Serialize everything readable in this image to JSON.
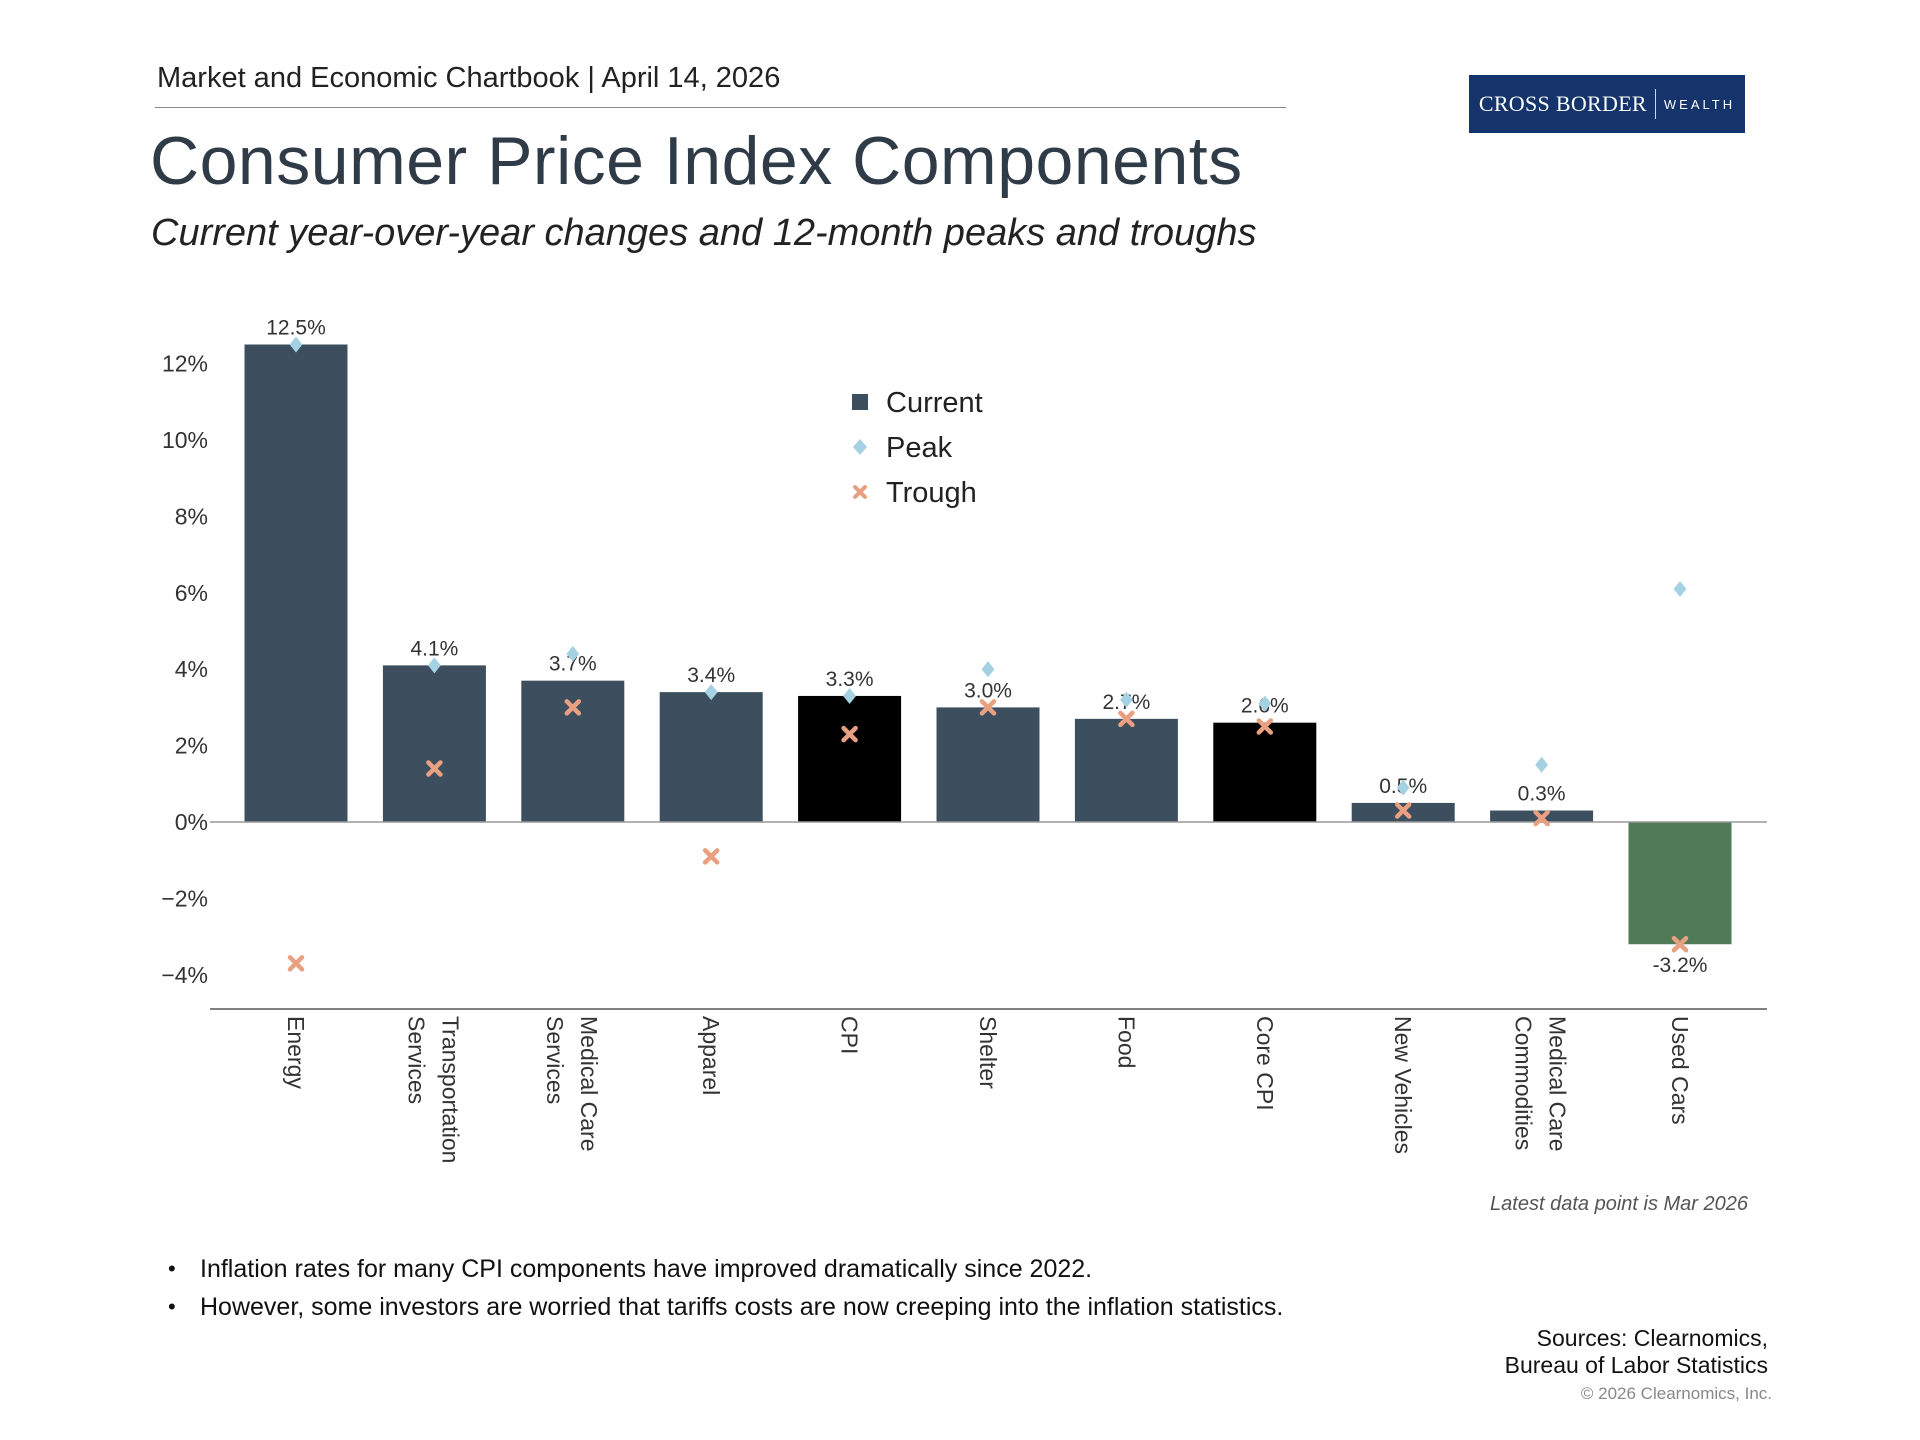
{
  "header": {
    "text": "Market and Economic Chartbook | April 14, 2026"
  },
  "title": "Consumer Price Index Components",
  "subtitle": "Current year-over-year changes and 12-month peaks and troughs",
  "logo": {
    "text_main": "CROSS BORDER",
    "text_sub": "WEALTH",
    "color": "#14346b"
  },
  "note": "Latest data point is Mar 2026",
  "bullets": [
    "Inflation rates for many CPI components have improved dramatically since 2022.",
    "However, some investors are worried that tariffs costs are now creeping into the inflation statistics."
  ],
  "sources": {
    "line1": "Sources: Clearnomics,",
    "line2": "Bureau of Labor Statistics"
  },
  "copyright": "© 2026 Clearnomics, Inc.",
  "chart_data": {
    "type": "bar",
    "categories": [
      "Energy",
      "Transportation\nServices",
      "Medical Care\nServices",
      "Apparel",
      "CPI",
      "Shelter",
      "Food",
      "Core CPI",
      "New Vehicles",
      "Medical Care\nCommodities",
      "Used Cars"
    ],
    "series": [
      {
        "name": "Current",
        "values": [
          12.5,
          4.1,
          3.7,
          3.4,
          3.3,
          3.0,
          2.7,
          2.6,
          0.5,
          0.3,
          -3.2
        ]
      },
      {
        "name": "Peak",
        "values": [
          12.5,
          4.1,
          4.4,
          3.4,
          3.3,
          4.0,
          3.2,
          3.1,
          0.9,
          1.5,
          6.1
        ]
      },
      {
        "name": "Trough",
        "values": [
          -3.7,
          1.4,
          3.0,
          -0.9,
          2.3,
          3.0,
          2.7,
          2.5,
          0.3,
          0.1,
          -3.2
        ]
      }
    ],
    "data_labels": [
      "12.5%",
      "4.1%",
      "3.7%",
      "3.4%",
      "3.3%",
      "3.0%",
      "2.7%",
      "2.6%",
      "0.5%",
      "0.3%",
      "-3.2%"
    ],
    "ylim": [
      -4.8,
      13
    ],
    "yticks": [
      -4,
      -2,
      0,
      2,
      4,
      6,
      8,
      10,
      12
    ],
    "ytick_labels": [
      "−4%",
      "−2%",
      "0%",
      "2%",
      "4%",
      "6%",
      "8%",
      "10%",
      "12%"
    ],
    "legend": {
      "position": "top-center",
      "entries": [
        "Current",
        "Peak",
        "Trough"
      ]
    },
    "grid": false,
    "colors": {
      "current": "#3d4f5f",
      "highlight": "#000000",
      "negative": "#517a57",
      "peak": "#a5d2e3",
      "trough": "#e8a080"
    },
    "highlighted_categories": [
      "CPI",
      "Core CPI"
    ]
  }
}
